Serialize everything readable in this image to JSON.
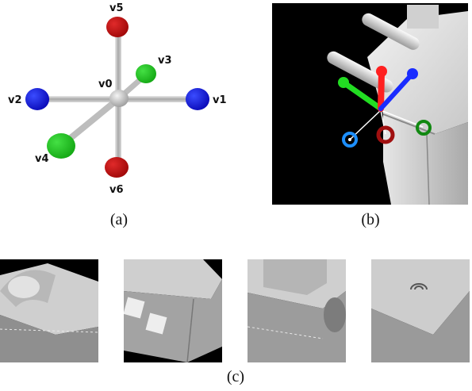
{
  "panel_a": {
    "center_label": "v0",
    "vertices": [
      {
        "label": "v1",
        "color": "#1010e0"
      },
      {
        "label": "v2",
        "color": "#1010e0"
      },
      {
        "label": "v3",
        "color": "#22c322"
      },
      {
        "label": "v4",
        "color": "#22c322"
      },
      {
        "label": "v5",
        "color": "#cc1010"
      },
      {
        "label": "v6",
        "color": "#cc1010"
      }
    ]
  },
  "panel_b": {
    "description_colors": {
      "background": "#000000",
      "axis_red": "#ff2020",
      "axis_green": "#22dd22",
      "axis_blue": "#1a2cff"
    }
  },
  "captions": {
    "a": "(a)",
    "b": "(b)",
    "c": "(c)"
  }
}
